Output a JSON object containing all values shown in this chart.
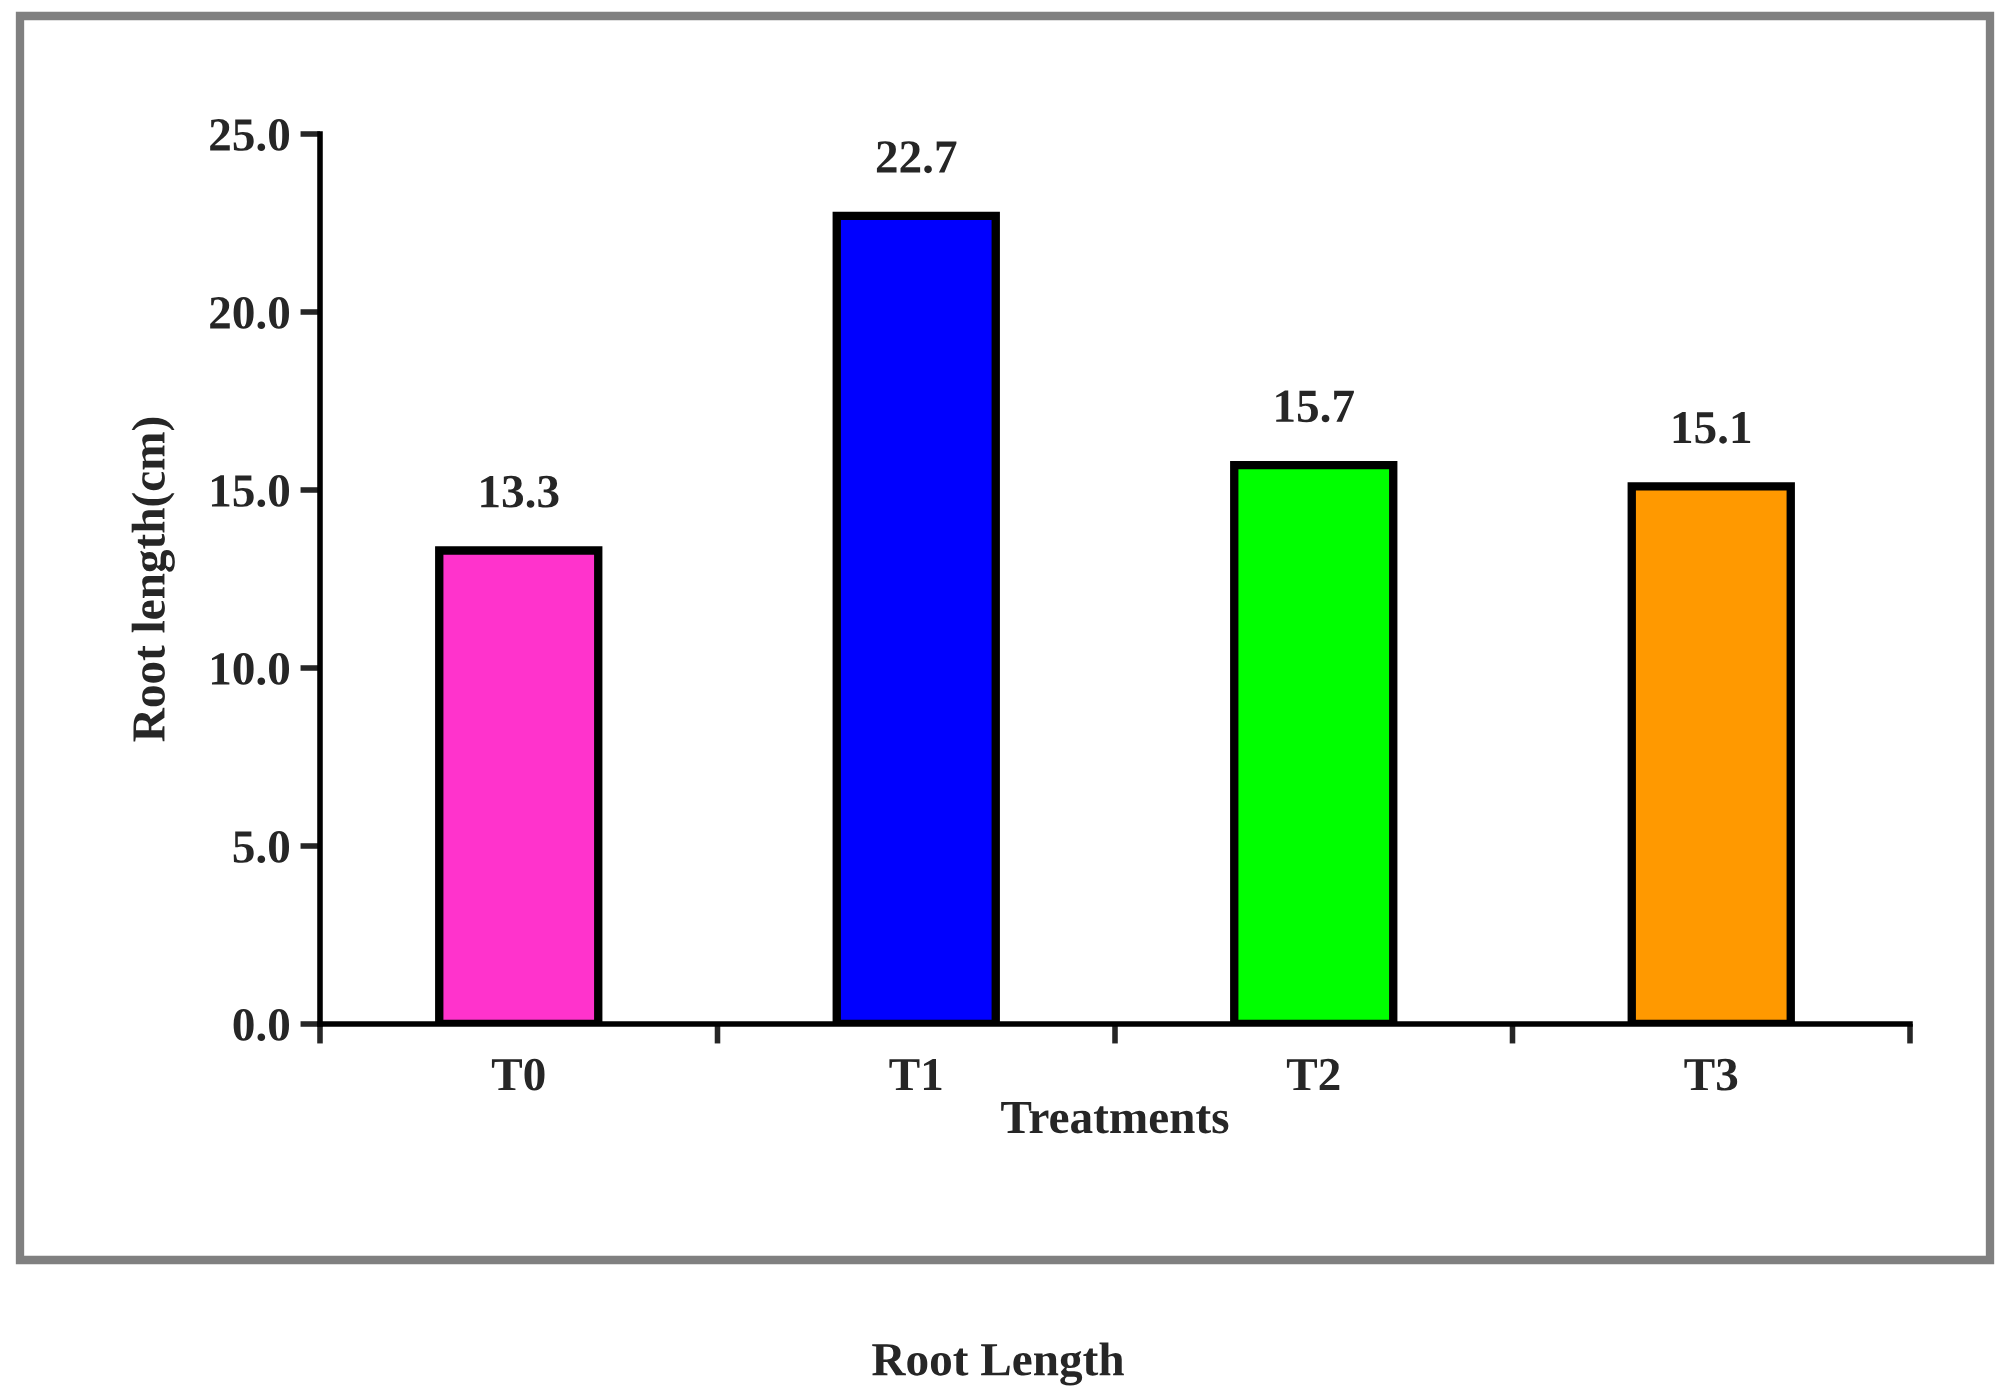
{
  "chart_data": {
    "type": "bar",
    "title": "Root Length",
    "xlabel": "Treatments",
    "ylabel": "Root length(cm)",
    "categories": [
      "T0",
      "T1",
      "T2",
      "T3"
    ],
    "values": [
      13.3,
      22.7,
      15.7,
      15.1
    ],
    "colors": [
      "#ff33cc",
      "#0000ff",
      "#00ff00",
      "#ff9900"
    ],
    "ylim": [
      0,
      25
    ],
    "yticks": [
      {
        "value": 0,
        "label": "0.0"
      },
      {
        "value": 5,
        "label": "5.0"
      },
      {
        "value": 10,
        "label": "10.0"
      },
      {
        "value": 15,
        "label": "15.0"
      },
      {
        "value": 20,
        "label": "20.0"
      },
      {
        "value": 25,
        "label": "25.0"
      }
    ],
    "data_labels": true,
    "grid": false,
    "legend": false
  }
}
